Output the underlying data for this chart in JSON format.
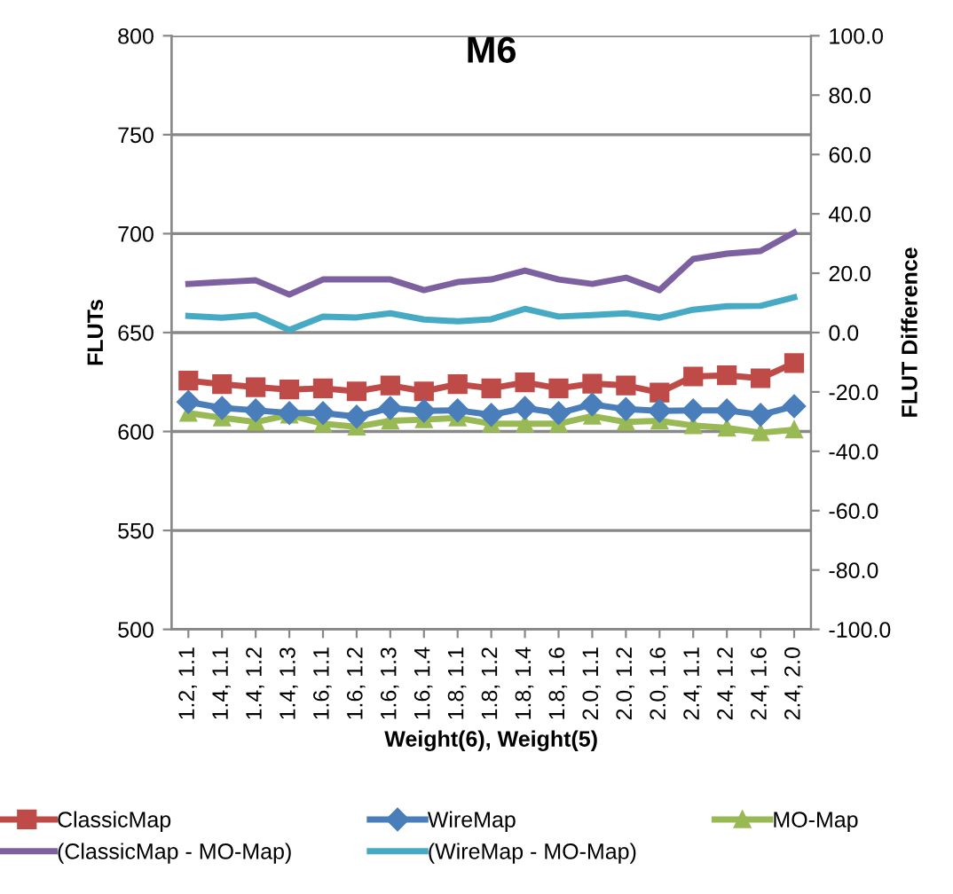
{
  "chart_data": {
    "type": "line",
    "title": "M6",
    "xlabel": "Weight(6), Weight(5)",
    "ylabel": "FLUTs",
    "y2label": "FLUT Difference",
    "categories": [
      "1.2, 1.1",
      "1.4, 1.1",
      "1.4, 1.2",
      "1.4, 1.3",
      "1.6, 1.1",
      "1.6, 1.2",
      "1.6, 1.3",
      "1.6, 1.4",
      "1.8, 1.1",
      "1.8, 1.2",
      "1.8, 1.4",
      "1.8, 1.6",
      "2.0, 1.1",
      "2.0, 1.2",
      "2.0, 1.6",
      "2.4, 1.1",
      "2.4, 1.2",
      "2.4, 1.6",
      "2.4, 2.0"
    ],
    "series": [
      {
        "name": "ClassicMap",
        "color": "#be4b48",
        "marker": "square",
        "values": [
          625.7,
          623.9,
          622.4,
          621.2,
          621.8,
          620.3,
          623.3,
          620.3,
          623.9,
          621.8,
          624.8,
          621.8,
          624.2,
          623.3,
          619.7,
          627.8,
          628.4,
          626.9,
          634.6
        ]
      },
      {
        "name": "WireMap",
        "color": "#4a7ebb",
        "marker": "diamond",
        "values": [
          614.9,
          611.9,
          610.7,
          609.3,
          609.3,
          607.5,
          611.9,
          610.4,
          610.7,
          608.4,
          611.9,
          609.3,
          613.7,
          611.3,
          610.4,
          610.7,
          610.7,
          608.4,
          612.8
        ]
      },
      {
        "name": "MO-Map",
        "color": "#98b954",
        "marker": "triangle",
        "values": [
          609.3,
          606.9,
          604.8,
          608.4,
          603.9,
          602.4,
          605.4,
          606.0,
          606.9,
          603.9,
          603.9,
          603.9,
          607.8,
          604.8,
          605.4,
          603.0,
          601.8,
          599.4,
          600.9
        ]
      },
      {
        "name": "(ClassicMap - MO-Map)",
        "color": "#7d60a0",
        "marker": "none",
        "axis": "y2",
        "values": [
          16.4,
          17.0,
          17.6,
          12.8,
          17.9,
          17.9,
          17.9,
          14.3,
          17.0,
          17.9,
          20.9,
          17.9,
          16.4,
          18.5,
          14.3,
          24.8,
          26.6,
          27.5,
          33.7
        ]
      },
      {
        "name": "(WireMap - MO-Map)",
        "color": "#46aac5",
        "marker": "none",
        "axis": "y2",
        "values": [
          5.6,
          5.0,
          5.9,
          0.9,
          5.4,
          5.1,
          6.5,
          4.4,
          3.8,
          4.5,
          8.0,
          5.4,
          5.9,
          6.5,
          5.0,
          7.7,
          8.9,
          9.0,
          11.9
        ]
      }
    ],
    "ylim": [
      500,
      800
    ],
    "yticks": [
      500,
      550,
      600,
      650,
      700,
      750,
      800
    ],
    "y2lim": [
      -100,
      100
    ],
    "y2ticks": [
      {
        "value": -100,
        "label": "-100.0"
      },
      {
        "value": -80,
        "label": "-80.0"
      },
      {
        "value": -60,
        "label": "-60.0"
      },
      {
        "value": -40,
        "label": "-40.0"
      },
      {
        "value": -20,
        "label": "-20.0"
      },
      {
        "value": 0,
        "label": "0.0"
      },
      {
        "value": 20,
        "label": "20.0"
      },
      {
        "value": 40,
        "label": "40.0"
      },
      {
        "value": 60,
        "label": "60.0"
      },
      {
        "value": 80,
        "label": "80.0"
      },
      {
        "value": 100,
        "label": "100.0"
      }
    ],
    "grid": "y",
    "legend": "bottom",
    "line_style": "solid"
  }
}
